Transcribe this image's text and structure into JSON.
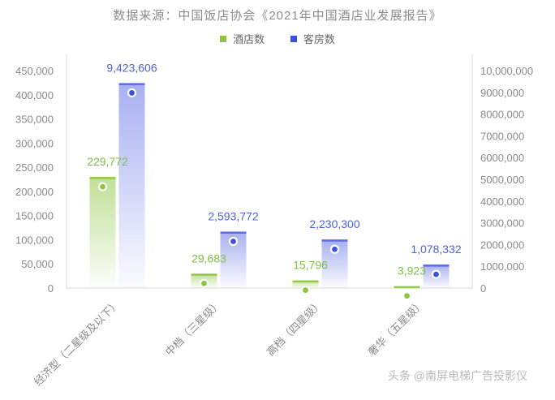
{
  "title": "数据来源：中国饭店协会《2021年中国酒店业发展报告》",
  "watermark": "头条 @南屏电梯广告投影仪",
  "colors": {
    "hotel": "#8cc63f",
    "room": "#3b4fe0",
    "hotel_label": "#7cc242",
    "room_label": "#4a63d8",
    "axis_text": "#8a8a8a",
    "baseline": "#d9d9d9"
  },
  "chart_data": {
    "type": "bar",
    "categories": [
      "经济型（二星级及以下）",
      "中档（三星级）",
      "高档（四星级）",
      "奢华（五星级）"
    ],
    "series": [
      {
        "name": "酒店数",
        "axis": "left",
        "values": [
          229772,
          29683,
          15796,
          3923
        ],
        "labels": [
          "229,772",
          "29,683",
          "15,796",
          "3,923"
        ]
      },
      {
        "name": "客房数",
        "axis": "right",
        "values": [
          9423606,
          2593772,
          2230300,
          1078332
        ],
        "labels": [
          "9,423,606",
          "2,593,772",
          "2,230,300",
          "1,078,332"
        ]
      }
    ],
    "y_left": {
      "ylim": [
        0,
        450000
      ],
      "ticks": [
        "0",
        "50,000",
        "100,000",
        "150,000",
        "200,000",
        "250,000",
        "300,000",
        "350,000",
        "400,000",
        "450,000"
      ]
    },
    "y_right": {
      "ylim": [
        0,
        10000000
      ],
      "ticks": [
        "0",
        "1000,000",
        "2000,000",
        "3000,000",
        "4000,000",
        "5000,000",
        "6000,000",
        "7000,000",
        "8000,000",
        "9000,000",
        "10,000,000"
      ]
    },
    "legend_position": "top-center",
    "grid": false
  }
}
